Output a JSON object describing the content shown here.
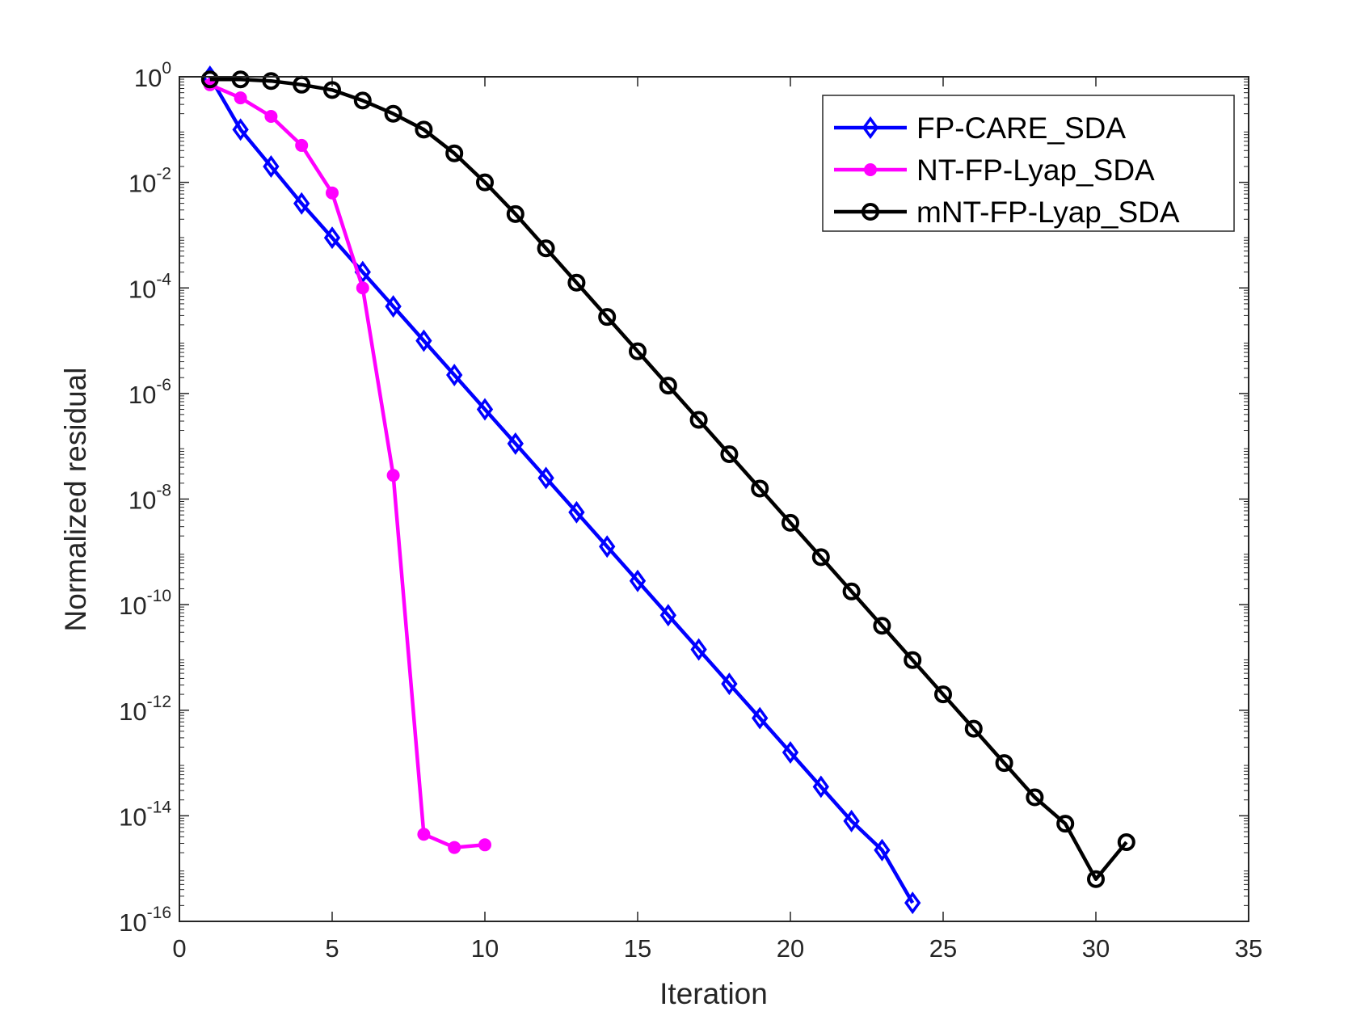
{
  "chart_data": {
    "type": "line",
    "xlabel": "Iteration",
    "ylabel": "Normalized residual",
    "xlim": [
      0,
      35
    ],
    "ylim_log10": [
      -16,
      0
    ],
    "yscale": "log",
    "x_ticks": [
      "0",
      "5",
      "10",
      "15",
      "20",
      "25",
      "30",
      "35"
    ],
    "y_ticks": [
      {
        "base": "10",
        "exp": "0"
      },
      {
        "base": "10",
        "exp": "-2"
      },
      {
        "base": "10",
        "exp": "-4"
      },
      {
        "base": "10",
        "exp": "-6"
      },
      {
        "base": "10",
        "exp": "-8"
      },
      {
        "base": "10",
        "exp": "-10"
      },
      {
        "base": "10",
        "exp": "-12"
      },
      {
        "base": "10",
        "exp": "-14"
      },
      {
        "base": "10",
        "exp": "-16"
      }
    ],
    "legend_position": "top-right",
    "series": [
      {
        "name": "FP-CARE_SDA",
        "color": "#0000ff",
        "marker": "diamond",
        "x": [
          1,
          2,
          3,
          4,
          5,
          6,
          7,
          8,
          9,
          10,
          11,
          12,
          13,
          14,
          15,
          16,
          17,
          18,
          19,
          20,
          21,
          22,
          23,
          24
        ],
        "log10_y": [
          0.0,
          -1.0,
          -1.7,
          -2.4,
          -3.05,
          -3.7,
          -4.35,
          -5.0,
          -5.65,
          -6.3,
          -6.95,
          -7.6,
          -8.25,
          -8.9,
          -9.55,
          -10.2,
          -10.85,
          -11.5,
          -12.15,
          -12.8,
          -13.45,
          -14.1,
          -14.65,
          -15.65
        ]
      },
      {
        "name": "NT-FP-Lyap_SDA",
        "color": "#ff00ff",
        "marker": "filled-circle",
        "x": [
          1,
          2,
          3,
          4,
          5,
          6,
          7,
          8,
          9,
          10
        ],
        "log10_y": [
          -0.15,
          -0.4,
          -0.75,
          -1.3,
          -2.2,
          -4.0,
          -7.55,
          -14.35,
          -14.6,
          -14.55
        ]
      },
      {
        "name": "mNT-FP-Lyap_SDA",
        "color": "#000000",
        "marker": "open-circle",
        "x": [
          1,
          2,
          3,
          4,
          5,
          6,
          7,
          8,
          9,
          10,
          11,
          12,
          13,
          14,
          15,
          16,
          17,
          18,
          19,
          20,
          21,
          22,
          23,
          24,
          25,
          26,
          27,
          28,
          29,
          30,
          31
        ],
        "log10_y": [
          -0.05,
          -0.05,
          -0.08,
          -0.15,
          -0.25,
          -0.45,
          -0.7,
          -1.0,
          -1.45,
          -2.0,
          -2.6,
          -3.25,
          -3.9,
          -4.55,
          -5.2,
          -5.85,
          -6.5,
          -7.15,
          -7.8,
          -8.45,
          -9.1,
          -9.75,
          -10.4,
          -11.05,
          -11.7,
          -12.35,
          -13.0,
          -13.65,
          -14.15,
          -15.2,
          -14.5
        ]
      }
    ]
  }
}
